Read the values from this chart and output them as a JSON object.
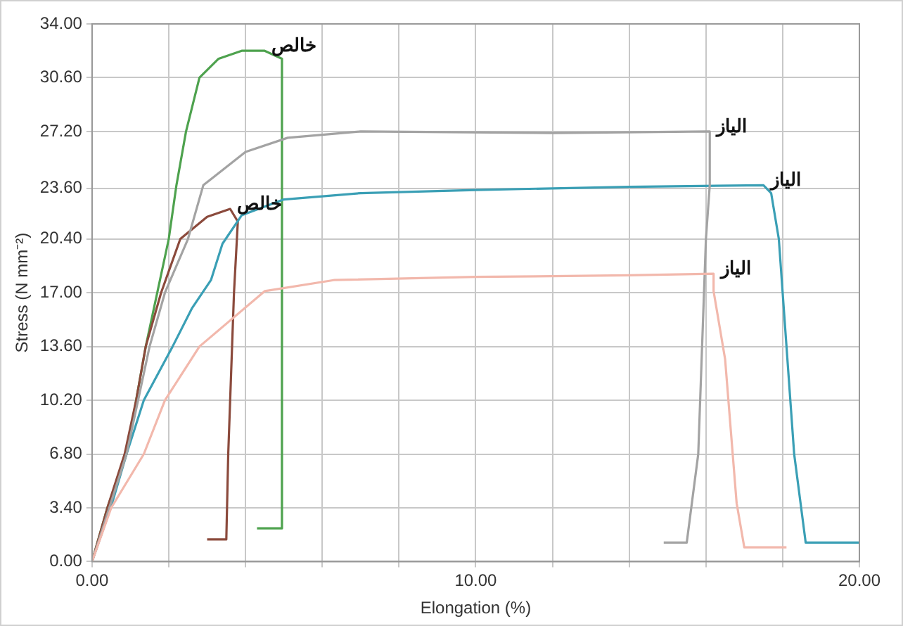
{
  "chart_data": {
    "type": "line",
    "xlabel": "Elongation (%)",
    "ylabel": "Stress (N mm⁻²)",
    "xlim": [
      0,
      20
    ],
    "xticks": [
      {
        "value": 0,
        "label": "0.00"
      },
      {
        "value": 2,
        "label": null
      },
      {
        "value": 4,
        "label": null
      },
      {
        "value": 6,
        "label": null
      },
      {
        "value": 8,
        "label": null
      },
      {
        "value": 10,
        "label": "10.00"
      },
      {
        "value": 12,
        "label": null
      },
      {
        "value": 14,
        "label": null
      },
      {
        "value": 16,
        "label": null
      },
      {
        "value": 18,
        "label": null
      },
      {
        "value": 20,
        "label": "20.00"
      }
    ],
    "ylim": [
      0,
      34
    ],
    "yticks": [
      {
        "value": 0,
        "label": "0.00"
      },
      {
        "value": 3.4,
        "label": "3.40"
      },
      {
        "value": 6.8,
        "label": "6.80"
      },
      {
        "value": 10.2,
        "label": "10.20"
      },
      {
        "value": 13.6,
        "label": "13.60"
      },
      {
        "value": 17,
        "label": "17.00"
      },
      {
        "value": 20.4,
        "label": "20.40"
      },
      {
        "value": 23.6,
        "label": "23.60"
      },
      {
        "value": 27.2,
        "label": "27.20"
      },
      {
        "value": 30.6,
        "label": "30.60"
      },
      {
        "value": 34,
        "label": "34.00"
      }
    ],
    "grid": true,
    "legend": false,
    "marker": "none",
    "line_style": "solid",
    "series": [
      {
        "name": "الياز",
        "color": "#f2b8ac",
        "x": [
          0,
          0.5,
          1.35,
          1.9,
          2.8,
          4.5,
          6.3,
          10,
          14,
          16.2,
          16.2,
          16.5,
          16.8,
          17.0,
          18.1
        ],
        "values": [
          0,
          3.4,
          6.8,
          10.2,
          13.6,
          17.1,
          17.8,
          18.0,
          18.1,
          18.2,
          17.1,
          12.8,
          3.7,
          0.9,
          0.9
        ]
      },
      {
        "name": "الياز",
        "color": "#a3a3a3",
        "x": [
          0,
          0.45,
          0.9,
          1.2,
          1.5,
          1.9,
          2.5,
          2.9,
          4,
          5.1,
          7,
          12,
          16.1,
          16.1,
          16,
          15.9,
          15.8,
          15.5,
          14.9
        ],
        "values": [
          0,
          3.4,
          6.8,
          10.2,
          13.6,
          17,
          20.4,
          23.8,
          25.9,
          26.8,
          27.2,
          27.1,
          27.2,
          23.8,
          20.4,
          13.6,
          6.8,
          1.2,
          1.2
        ]
      },
      {
        "name": "الياز",
        "color": "#3a9fb5",
        "x": [
          0,
          0.5,
          0.9,
          1.35,
          2.1,
          2.6,
          3.1,
          3.4,
          3.9,
          5,
          7,
          10,
          14,
          17.5,
          17.7,
          17.9,
          18.1,
          18.3,
          18.6,
          20
        ],
        "values": [
          0,
          3.5,
          6.8,
          10.2,
          13.6,
          16,
          17.8,
          20.1,
          21.9,
          22.9,
          23.3,
          23.5,
          23.7,
          23.8,
          23.3,
          20.4,
          13.6,
          6.8,
          1.2,
          1.2
        ]
      },
      {
        "name": "خالص",
        "color": "#8b4a3c",
        "x": [
          0,
          0.4,
          0.85,
          1.15,
          1.4,
          1.8,
          2.3,
          3.0,
          3.6,
          3.8,
          3.7,
          3.55,
          3.5,
          3.0
        ],
        "values": [
          0,
          3.4,
          6.8,
          10.2,
          13.6,
          17,
          20.4,
          21.8,
          22.3,
          21.5,
          17,
          6.8,
          1.4,
          1.4
        ]
      },
      {
        "name": "خالص",
        "color": "#4ea24e",
        "x": [
          0,
          0.4,
          0.9,
          1.15,
          1.4,
          1.7,
          2.0,
          2.2,
          2.45,
          2.8,
          3.3,
          3.9,
          4.5,
          4.95,
          4.95,
          4.3
        ],
        "values": [
          0,
          3.4,
          6.8,
          10.2,
          13.6,
          17,
          20.4,
          23.8,
          27.2,
          30.6,
          31.8,
          32.3,
          32.3,
          31.8,
          2.1,
          2.1
        ]
      }
    ]
  }
}
